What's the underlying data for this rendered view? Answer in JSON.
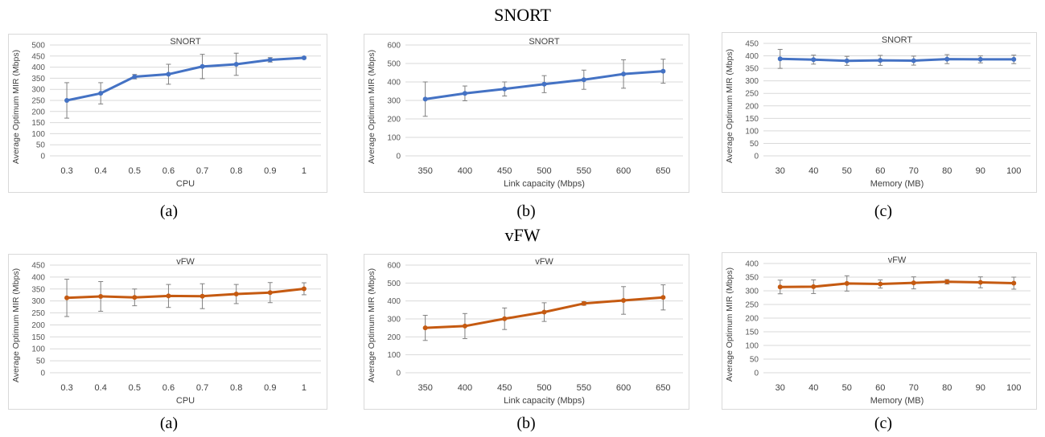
{
  "sections": {
    "top_title": "SNORT",
    "bottom_title": "vFW"
  },
  "captions": [
    "(a)",
    "(b)",
    "(c)",
    "(a)",
    "(b)",
    "(c)"
  ],
  "colors": {
    "snort": "#4472C4",
    "vfw": "#C55A11",
    "error_bar": "#808080",
    "grid": "#D9D9D9",
    "frame": "#D9D9D9"
  },
  "chart_data": [
    {
      "type": "line",
      "title": "SNORT",
      "xlabel": "CPU",
      "ylabel": "Average Optimum  MIR  (Mbps)",
      "categories": [
        "0.3",
        "0.4",
        "0.5",
        "0.6",
        "0.7",
        "0.8",
        "0.9",
        "1"
      ],
      "series": [
        {
          "values": [
            250,
            282,
            357,
            368,
            403,
            413,
            433,
            442
          ],
          "error": [
            80,
            48,
            10,
            45,
            55,
            50,
            10,
            4
          ]
        }
      ],
      "ylim": [
        0,
        500
      ],
      "yticks": [
        0,
        50,
        100,
        150,
        200,
        250,
        300,
        350,
        400,
        450,
        500
      ],
      "grid": true,
      "color": "#4472C4"
    },
    {
      "type": "line",
      "title": "SNORT",
      "xlabel": "Link capacity (Mbps)",
      "ylabel": "Average Optimum  MIR  (Mbps)",
      "categories": [
        "350",
        "400",
        "450",
        "500",
        "550",
        "600",
        "650"
      ],
      "series": [
        {
          "values": [
            307,
            338,
            362,
            388,
            412,
            443,
            458
          ],
          "error": [
            93,
            40,
            38,
            46,
            52,
            77,
            65
          ]
        }
      ],
      "ylim": [
        0,
        600
      ],
      "yticks": [
        0,
        100,
        200,
        300,
        400,
        500,
        600
      ],
      "grid": true,
      "color": "#4472C4"
    },
    {
      "type": "line",
      "title": "SNORT",
      "xlabel": "Memory (MB)",
      "ylabel": "Average Optimum  MIR  (Mbps)",
      "categories": [
        "30",
        "40",
        "50",
        "60",
        "70",
        "80",
        "90",
        "100"
      ],
      "series": [
        {
          "values": [
            388,
            385,
            380,
            382,
            381,
            387,
            386,
            386
          ],
          "error": [
            38,
            18,
            18,
            20,
            18,
            18,
            14,
            17
          ]
        }
      ],
      "ylim": [
        0,
        450
      ],
      "yticks": [
        0,
        50,
        100,
        150,
        200,
        250,
        300,
        350,
        400,
        450
      ],
      "grid": true,
      "color": "#4472C4"
    },
    {
      "type": "line",
      "title": "vFW",
      "xlabel": "CPU",
      "ylabel": "Average Optimum  MIR  (Mbps)",
      "categories": [
        "0.3",
        "0.4",
        "0.5",
        "0.6",
        "0.7",
        "0.8",
        "0.9",
        "1"
      ],
      "series": [
        {
          "values": [
            313,
            319,
            315,
            321,
            320,
            329,
            335,
            351
          ],
          "error": [
            78,
            62,
            35,
            48,
            52,
            40,
            42,
            25
          ]
        }
      ],
      "ylim": [
        0,
        450
      ],
      "yticks": [
        0,
        50,
        100,
        150,
        200,
        250,
        300,
        350,
        400,
        450
      ],
      "grid": true,
      "color": "#C55A11"
    },
    {
      "type": "line",
      "title": "vFW",
      "xlabel": "Link capacity (Mbps)",
      "ylabel": "Average Optimum  MIR  (Mbps)",
      "categories": [
        "350",
        "400",
        "450",
        "500",
        "550",
        "600",
        "650"
      ],
      "series": [
        {
          "values": [
            250,
            260,
            301,
            338,
            386,
            403,
            420
          ],
          "error": [
            70,
            70,
            60,
            52,
            10,
            77,
            70
          ]
        }
      ],
      "ylim": [
        0,
        600
      ],
      "yticks": [
        0,
        100,
        200,
        300,
        400,
        500,
        600
      ],
      "grid": true,
      "color": "#C55A11"
    },
    {
      "type": "line",
      "title": "vFW",
      "xlabel": "Memory (MB)",
      "ylabel": "Average Optimum  MIR  (Mbps)",
      "categories": [
        "30",
        "40",
        "50",
        "60",
        "70",
        "80",
        "90",
        "100"
      ],
      "series": [
        {
          "values": [
            314,
            315,
            327,
            325,
            329,
            333,
            331,
            328
          ],
          "error": [
            25,
            25,
            28,
            15,
            22,
            8,
            20,
            22
          ]
        }
      ],
      "ylim": [
        0,
        400
      ],
      "yticks": [
        0,
        50,
        100,
        150,
        200,
        250,
        300,
        350,
        400
      ],
      "grid": true,
      "color": "#C55A11"
    }
  ]
}
